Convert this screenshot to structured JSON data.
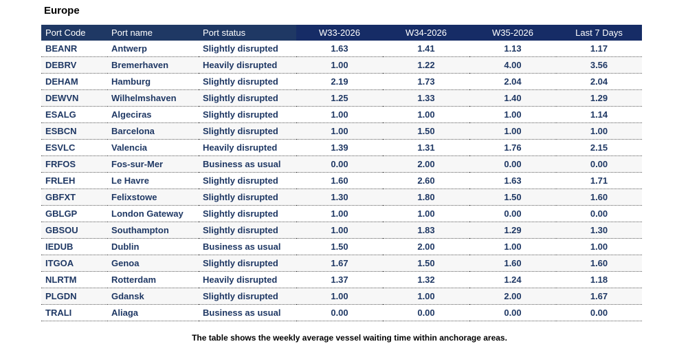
{
  "region_title": "Europe",
  "columns": [
    "Port Code",
    "Port name",
    "Port status",
    "W33-2026",
    "W34-2026",
    "W35-2026",
    "Last 7 Days"
  ],
  "rows": [
    [
      "BEANR",
      "Antwerp",
      "Slightly disrupted",
      "1.63",
      "1.41",
      "1.13",
      "1.17"
    ],
    [
      "DEBRV",
      "Bremerhaven",
      "Heavily disrupted",
      "1.00",
      "1.22",
      "4.00",
      "3.56"
    ],
    [
      "DEHAM",
      "Hamburg",
      "Slightly disrupted",
      "2.19",
      "1.73",
      "2.04",
      "2.04"
    ],
    [
      "DEWVN",
      "Wilhelmshaven",
      "Slightly disrupted",
      "1.25",
      "1.33",
      "1.40",
      "1.29"
    ],
    [
      "ESALG",
      "Algeciras",
      "Slightly disrupted",
      "1.00",
      "1.00",
      "1.00",
      "1.14"
    ],
    [
      "ESBCN",
      "Barcelona",
      "Slightly disrupted",
      "1.00",
      "1.50",
      "1.00",
      "1.00"
    ],
    [
      "ESVLC",
      "Valencia",
      "Heavily disrupted",
      "1.39",
      "1.31",
      "1.76",
      "2.15"
    ],
    [
      "FRFOS",
      "Fos-sur-Mer",
      "Business as usual",
      "0.00",
      "2.00",
      "0.00",
      "0.00"
    ],
    [
      "FRLEH",
      "Le Havre",
      "Slightly disrupted",
      "1.60",
      "2.60",
      "1.63",
      "1.71"
    ],
    [
      "GBFXT",
      "Felixstowe",
      "Slightly disrupted",
      "1.30",
      "1.80",
      "1.50",
      "1.60"
    ],
    [
      "GBLGP",
      "London Gateway",
      "Slightly disrupted",
      "1.00",
      "1.00",
      "0.00",
      "0.00"
    ],
    [
      "GBSOU",
      "Southampton",
      "Slightly disrupted",
      "1.00",
      "1.83",
      "1.29",
      "1.30"
    ],
    [
      "IEDUB",
      "Dublin",
      "Business as usual",
      "1.50",
      "2.00",
      "1.00",
      "1.00"
    ],
    [
      "ITGOA",
      "Genoa",
      "Slightly disrupted",
      "1.67",
      "1.50",
      "1.60",
      "1.60"
    ],
    [
      "NLRTM",
      "Rotterdam",
      "Heavily disrupted",
      "1.37",
      "1.32",
      "1.24",
      "1.18"
    ],
    [
      "PLGDN",
      "Gdansk",
      "Slightly disrupted",
      "1.00",
      "1.00",
      "2.00",
      "1.67"
    ],
    [
      "TRALI",
      "Aliaga",
      "Business as usual",
      "0.00",
      "0.00",
      "0.00",
      "0.00"
    ]
  ],
  "caption": "The table shows the weekly average vessel waiting time within anchorage areas.",
  "colors": {
    "header_bg": "#1f3864",
    "text": "#1f3864"
  }
}
